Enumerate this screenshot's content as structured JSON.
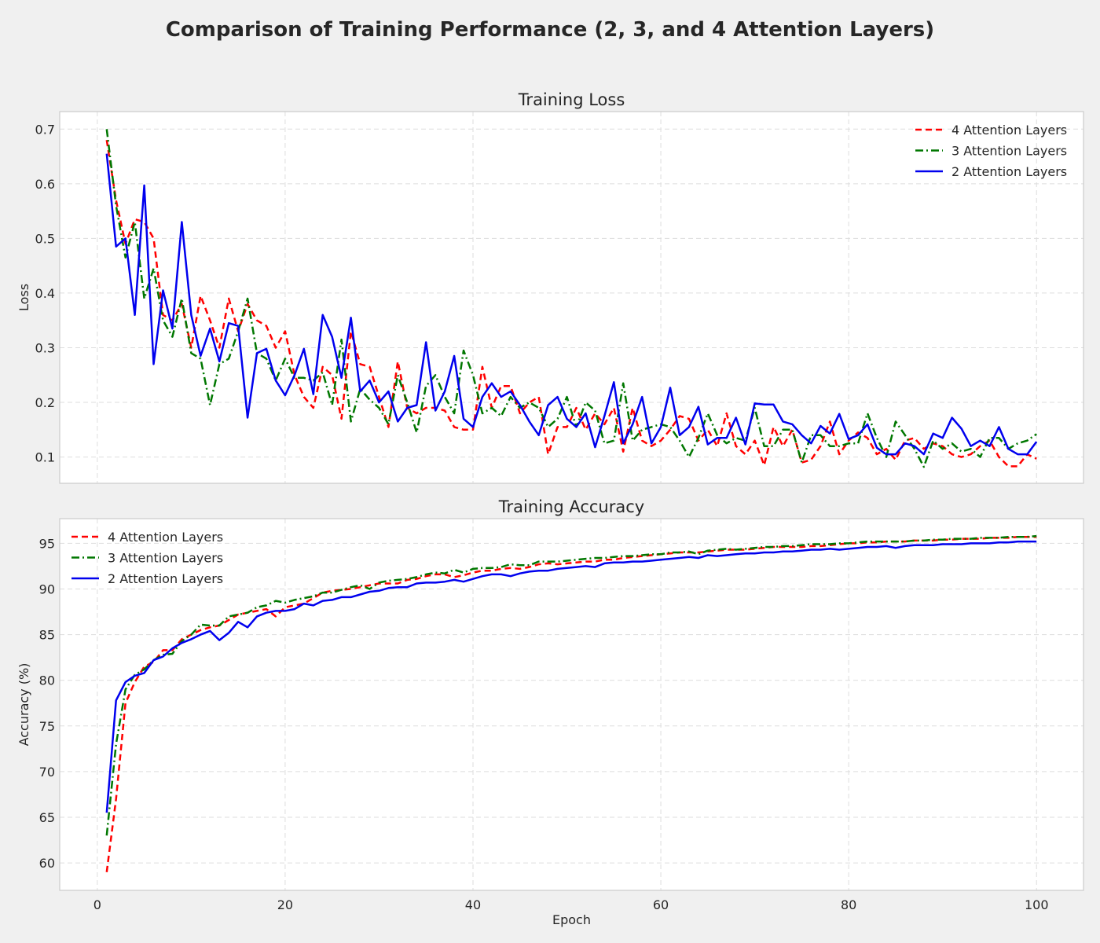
{
  "figure": {
    "title": "Comparison of Training Performance (2, 3, and 4 Attention Layers)"
  },
  "colors": {
    "background": "#f0f0f0",
    "plot_bg": "#ffffff",
    "grid": "#dddddd",
    "frame": "#cccccc"
  },
  "chart_data": [
    {
      "type": "line",
      "title": "Training Loss",
      "xlabel": "",
      "ylabel": "Loss",
      "xlim": [
        -4,
        105
      ],
      "ylim": [
        0.052,
        0.732
      ],
      "xticks": [
        0,
        20,
        40,
        60,
        80,
        100
      ],
      "yticks": [
        0.1,
        0.2,
        0.3,
        0.4,
        0.5,
        0.6,
        0.7
      ],
      "ytick_labels": [
        "0.1",
        "0.2",
        "0.3",
        "0.4",
        "0.5",
        "0.6",
        "0.7"
      ],
      "show_xtick_labels": false,
      "grid": true,
      "legend": "top-right",
      "x": [
        1,
        2,
        3,
        4,
        5,
        6,
        7,
        8,
        9,
        10,
        11,
        12,
        13,
        14,
        15,
        16,
        17,
        18,
        19,
        20,
        21,
        22,
        23,
        24,
        25,
        26,
        27,
        28,
        29,
        30,
        31,
        32,
        33,
        34,
        35,
        36,
        37,
        38,
        39,
        40,
        41,
        42,
        43,
        44,
        45,
        46,
        47,
        48,
        49,
        50,
        51,
        52,
        53,
        54,
        55,
        56,
        57,
        58,
        59,
        60,
        61,
        62,
        63,
        64,
        65,
        66,
        67,
        68,
        69,
        70,
        71,
        72,
        73,
        74,
        75,
        76,
        77,
        78,
        79,
        80,
        81,
        82,
        83,
        84,
        85,
        86,
        87,
        88,
        89,
        90,
        91,
        92,
        93,
        94,
        95,
        96,
        97,
        98,
        99,
        100
      ],
      "series": [
        {
          "name": "4 Attention Layers",
          "color": "#ff0000",
          "dash": "8,5",
          "values": [
            0.68,
            0.57,
            0.49,
            0.535,
            0.53,
            0.5,
            0.36,
            0.35,
            0.38,
            0.3,
            0.395,
            0.35,
            0.3,
            0.39,
            0.33,
            0.38,
            0.35,
            0.34,
            0.3,
            0.33,
            0.25,
            0.21,
            0.19,
            0.265,
            0.25,
            0.17,
            0.33,
            0.27,
            0.265,
            0.21,
            0.155,
            0.275,
            0.19,
            0.18,
            0.19,
            0.19,
            0.185,
            0.155,
            0.15,
            0.15,
            0.265,
            0.19,
            0.23,
            0.23,
            0.18,
            0.2,
            0.21,
            0.105,
            0.155,
            0.155,
            0.19,
            0.15,
            0.18,
            0.16,
            0.19,
            0.11,
            0.19,
            0.13,
            0.12,
            0.13,
            0.15,
            0.175,
            0.17,
            0.13,
            0.15,
            0.12,
            0.18,
            0.12,
            0.105,
            0.13,
            0.085,
            0.155,
            0.12,
            0.15,
            0.09,
            0.095,
            0.12,
            0.165,
            0.105,
            0.13,
            0.145,
            0.135,
            0.105,
            0.115,
            0.095,
            0.13,
            0.135,
            0.115,
            0.125,
            0.12,
            0.105,
            0.1,
            0.105,
            0.12,
            0.13,
            0.1,
            0.083,
            0.083,
            0.105,
            0.097
          ]
        },
        {
          "name": "3 Attention Layers",
          "color": "#007700",
          "dash": "10,4,2,4",
          "values": [
            0.7,
            0.56,
            0.465,
            0.53,
            0.39,
            0.445,
            0.35,
            0.32,
            0.39,
            0.29,
            0.28,
            0.195,
            0.27,
            0.28,
            0.33,
            0.39,
            0.29,
            0.28,
            0.24,
            0.28,
            0.245,
            0.245,
            0.24,
            0.255,
            0.195,
            0.315,
            0.165,
            0.225,
            0.205,
            0.19,
            0.16,
            0.25,
            0.2,
            0.145,
            0.23,
            0.25,
            0.21,
            0.18,
            0.295,
            0.25,
            0.18,
            0.19,
            0.175,
            0.21,
            0.19,
            0.2,
            0.19,
            0.155,
            0.17,
            0.21,
            0.155,
            0.2,
            0.185,
            0.125,
            0.13,
            0.235,
            0.13,
            0.15,
            0.155,
            0.16,
            0.155,
            0.13,
            0.1,
            0.135,
            0.18,
            0.14,
            0.125,
            0.135,
            0.13,
            0.19,
            0.12,
            0.12,
            0.15,
            0.15,
            0.09,
            0.14,
            0.14,
            0.12,
            0.12,
            0.125,
            0.125,
            0.18,
            0.135,
            0.1,
            0.165,
            0.14,
            0.115,
            0.082,
            0.13,
            0.115,
            0.125,
            0.11,
            0.115,
            0.1,
            0.135,
            0.135,
            0.115,
            0.125,
            0.13,
            0.142
          ]
        },
        {
          "name": "2 Attention Layers",
          "color": "#0000ee",
          "dash": "",
          "values": [
            0.655,
            0.485,
            0.5,
            0.36,
            0.597,
            0.27,
            0.405,
            0.335,
            0.53,
            0.36,
            0.285,
            0.335,
            0.275,
            0.345,
            0.34,
            0.172,
            0.29,
            0.298,
            0.24,
            0.213,
            0.25,
            0.298,
            0.215,
            0.36,
            0.32,
            0.245,
            0.355,
            0.22,
            0.24,
            0.2,
            0.22,
            0.165,
            0.19,
            0.195,
            0.31,
            0.185,
            0.22,
            0.285,
            0.17,
            0.155,
            0.21,
            0.235,
            0.21,
            0.22,
            0.195,
            0.165,
            0.14,
            0.195,
            0.21,
            0.17,
            0.155,
            0.18,
            0.118,
            0.175,
            0.237,
            0.125,
            0.16,
            0.21,
            0.125,
            0.155,
            0.227,
            0.14,
            0.155,
            0.192,
            0.123,
            0.135,
            0.135,
            0.172,
            0.123,
            0.198,
            0.196,
            0.196,
            0.165,
            0.16,
            0.14,
            0.125,
            0.157,
            0.143,
            0.179,
            0.133,
            0.14,
            0.16,
            0.117,
            0.105,
            0.105,
            0.125,
            0.12,
            0.105,
            0.143,
            0.135,
            0.172,
            0.152,
            0.12,
            0.13,
            0.12,
            0.155,
            0.115,
            0.105,
            0.105,
            0.128
          ]
        }
      ]
    },
    {
      "type": "line",
      "title": "Training Accuracy",
      "xlabel": "Epoch",
      "ylabel": "Accuracy (%)",
      "xlim": [
        -4,
        105
      ],
      "ylim": [
        57.0,
        97.7
      ],
      "xticks": [
        0,
        20,
        40,
        60,
        80,
        100
      ],
      "yticks": [
        60,
        65,
        70,
        75,
        80,
        85,
        90,
        95
      ],
      "ytick_labels": [
        "60",
        "65",
        "70",
        "75",
        "80",
        "85",
        "90",
        "95"
      ],
      "show_xtick_labels": true,
      "grid": true,
      "legend": "top-left",
      "x": [
        1,
        2,
        3,
        4,
        5,
        6,
        7,
        8,
        9,
        10,
        11,
        12,
        13,
        14,
        15,
        16,
        17,
        18,
        19,
        20,
        21,
        22,
        23,
        24,
        25,
        26,
        27,
        28,
        29,
        30,
        31,
        32,
        33,
        34,
        35,
        36,
        37,
        38,
        39,
        40,
        41,
        42,
        43,
        44,
        45,
        46,
        47,
        48,
        49,
        50,
        51,
        52,
        53,
        54,
        55,
        56,
        57,
        58,
        59,
        60,
        61,
        62,
        63,
        64,
        65,
        66,
        67,
        68,
        69,
        70,
        71,
        72,
        73,
        74,
        75,
        76,
        77,
        78,
        79,
        80,
        81,
        82,
        83,
        84,
        85,
        86,
        87,
        88,
        89,
        90,
        91,
        92,
        93,
        94,
        95,
        96,
        97,
        98,
        99,
        100
      ],
      "series": [
        {
          "name": "4 Attention Layers",
          "color": "#ff0000",
          "dash": "8,5",
          "values": [
            59,
            67,
            77.5,
            79.8,
            81.5,
            82,
            83.3,
            83.3,
            84.5,
            85,
            85.5,
            85.8,
            86,
            86.6,
            87.2,
            87.4,
            87.6,
            87.8,
            87,
            88,
            88.2,
            88.4,
            89,
            89.6,
            89.8,
            89.9,
            90,
            90.2,
            90.4,
            90.6,
            90.6,
            90.6,
            91,
            91.1,
            91.4,
            91.6,
            91.6,
            91.3,
            91.5,
            91.8,
            92,
            92,
            92.2,
            92.3,
            92.2,
            92.4,
            92.7,
            92.8,
            92.7,
            92.8,
            92.9,
            93,
            93,
            93.2,
            93.2,
            93.4,
            93.5,
            93.6,
            93.7,
            93.8,
            93.9,
            94,
            94,
            94,
            94.1,
            94.2,
            94.3,
            94.3,
            94.3,
            94.4,
            94.5,
            94.6,
            94.6,
            94.6,
            94.6,
            94.7,
            94.7,
            94.8,
            94.9,
            95,
            95,
            95.1,
            95.1,
            95.2,
            95.2,
            95.2,
            95.3,
            95.3,
            95.3,
            95.4,
            95.4,
            95.5,
            95.5,
            95.5,
            95.6,
            95.6,
            95.6,
            95.7,
            95.7,
            95.7
          ]
        },
        {
          "name": "3 Attention Layers",
          "color": "#007700",
          "dash": "10,4,2,4",
          "values": [
            63,
            73,
            79,
            80.6,
            81.2,
            82.2,
            82.8,
            82.9,
            84.3,
            85,
            86.1,
            86,
            86,
            87,
            87.2,
            87.4,
            88,
            88.2,
            88.7,
            88.5,
            88.8,
            89,
            89.2,
            89.6,
            89.6,
            89.9,
            90.2,
            90.4,
            90,
            90.7,
            90.9,
            91,
            91.1,
            91.3,
            91.6,
            91.8,
            91.7,
            92.1,
            91.8,
            92.2,
            92.3,
            92.3,
            92.4,
            92.7,
            92.6,
            92.6,
            93,
            93,
            93,
            93.1,
            93.2,
            93.3,
            93.4,
            93.4,
            93.5,
            93.6,
            93.6,
            93.7,
            93.8,
            93.8,
            94,
            94,
            94.1,
            93.8,
            94.2,
            94.3,
            94.4,
            94.3,
            94.4,
            94.5,
            94.6,
            94.6,
            94.7,
            94.7,
            94.8,
            94.9,
            94.9,
            94.9,
            95,
            95,
            95.1,
            95.2,
            95.2,
            95.2,
            95.2,
            95.2,
            95.3,
            95.3,
            95.4,
            95.4,
            95.5,
            95.5,
            95.5,
            95.6,
            95.6,
            95.6,
            95.7,
            95.7,
            95.7,
            95.8
          ]
        },
        {
          "name": "2 Attention Layers",
          "color": "#0000ee",
          "dash": "",
          "values": [
            65.5,
            77.8,
            79.8,
            80.5,
            80.8,
            82.2,
            82.6,
            83.5,
            84.1,
            84.5,
            85,
            85.4,
            84.4,
            85.2,
            86.4,
            85.8,
            87,
            87.4,
            87.6,
            87.6,
            87.8,
            88.4,
            88.2,
            88.7,
            88.8,
            89.1,
            89.1,
            89.4,
            89.7,
            89.8,
            90.1,
            90.2,
            90.2,
            90.6,
            90.7,
            90.7,
            90.8,
            91,
            90.8,
            91.1,
            91.4,
            91.6,
            91.6,
            91.4,
            91.7,
            91.9,
            92,
            92,
            92.2,
            92.3,
            92.4,
            92.5,
            92.4,
            92.8,
            92.9,
            92.9,
            93,
            93,
            93.1,
            93.2,
            93.3,
            93.4,
            93.5,
            93.4,
            93.7,
            93.6,
            93.7,
            93.8,
            93.9,
            93.9,
            94,
            94,
            94.1,
            94.1,
            94.2,
            94.3,
            94.3,
            94.4,
            94.3,
            94.4,
            94.5,
            94.6,
            94.6,
            94.7,
            94.5,
            94.7,
            94.8,
            94.8,
            94.8,
            94.9,
            94.9,
            94.9,
            95,
            95,
            95,
            95.1,
            95.1,
            95.2,
            95.2,
            95.2
          ]
        }
      ]
    }
  ]
}
